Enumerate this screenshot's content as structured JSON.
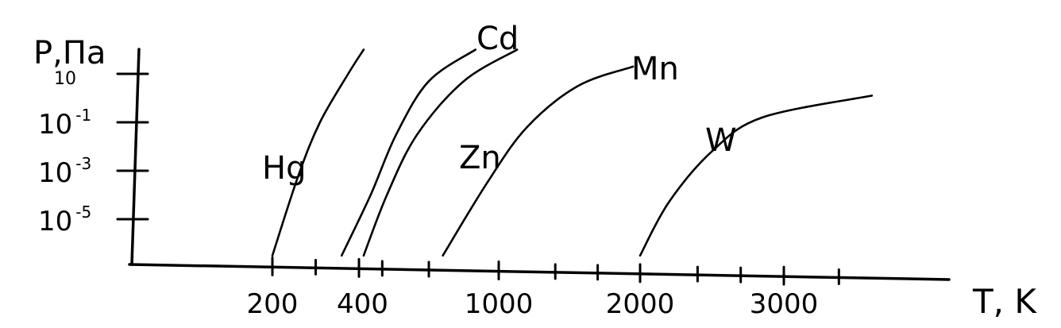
{
  "chart_data": {
    "type": "line",
    "xlabel": "T, K",
    "ylabel_main": "P,Па",
    "ylabel_sub": "10",
    "x_ticks": [
      {
        "value": 200,
        "label": "200"
      },
      {
        "value": 400,
        "label": "400"
      },
      {
        "value": 1000,
        "label": "1000"
      },
      {
        "value": 2000,
        "label": "2000"
      },
      {
        "value": 3000,
        "label": "3000"
      }
    ],
    "y_ticks": [
      {
        "exp": 1,
        "label": ""
      },
      {
        "exp": -1,
        "base": "10",
        "sup": "-1"
      },
      {
        "exp": -3,
        "base": "10",
        "sup": "-3"
      },
      {
        "exp": -5,
        "base": "10",
        "sup": "-5"
      }
    ],
    "series": [
      {
        "name": "Hg",
        "points": [
          [
            200,
            -6.5
          ],
          [
            260,
            -3.2
          ],
          [
            310,
            -1.0
          ],
          [
            375,
            1.0
          ],
          [
            420,
            2.0
          ]
        ]
      },
      {
        "name": "Cd",
        "points": [
          [
            360,
            -6.5
          ],
          [
            450,
            -4.0
          ],
          [
            560,
            -1.5
          ],
          [
            700,
            0.7
          ],
          [
            900,
            2.0
          ]
        ]
      },
      {
        "name": "Zn",
        "points": [
          [
            420,
            -6.5
          ],
          [
            520,
            -4.0
          ],
          [
            650,
            -1.5
          ],
          [
            850,
            0.7
          ],
          [
            1130,
            2.0
          ]
        ]
      },
      {
        "name": "Mn",
        "points": [
          [
            760,
            -6.5
          ],
          [
            950,
            -3.5
          ],
          [
            1200,
            -1.2
          ],
          [
            1560,
            0.5
          ],
          [
            1950,
            1.3
          ]
        ]
      },
      {
        "name": "W",
        "points": [
          [
            2000,
            -6.5
          ],
          [
            2200,
            -4.3
          ],
          [
            2500,
            -2.2
          ],
          [
            2850,
            -0.8
          ],
          [
            3320,
            0.1
          ]
        ]
      }
    ]
  }
}
